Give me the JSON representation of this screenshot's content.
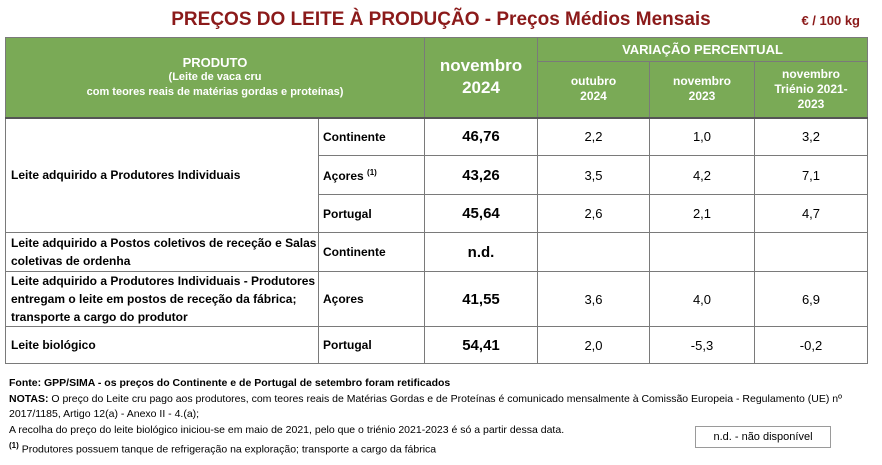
{
  "title": "PREÇOS DO LEITE À PRODUÇÃO - Preços Médios Mensais",
  "unit": "€ / 100 kg",
  "header": {
    "produto": "PRODUTO",
    "produto_sub1": "(Leite de vaca cru",
    "produto_sub2": "com teores reais de matérias gordas e proteínas)",
    "month_line1": "novembro",
    "month_line2": "2024",
    "variation": "VARIAÇÃO PERCENTUAL",
    "col1_line1": "outubro",
    "col1_line2": "2024",
    "col2_line1": "novembro",
    "col2_line2": "2023",
    "col3_line1": "novembro",
    "col3_line2": "Triénio 2021-",
    "col3_line3": "2023"
  },
  "rows": [
    {
      "product": "Leite adquirido a Produtores Individuais",
      "region": "Continente",
      "price": "46,76",
      "v1": "2,2",
      "v2": "1,0",
      "v3": "3,2"
    },
    {
      "region": "Açores",
      "sup": "(1)",
      "price": "43,26",
      "v1": "3,5",
      "v2": "4,2",
      "v3": "7,1"
    },
    {
      "region": "Portugal",
      "price": "45,64",
      "v1": "2,6",
      "v2": "2,1",
      "v3": "4,7"
    },
    {
      "product": "Leite adquirido a Postos coletivos de receção e Salas coletivas de ordenha",
      "region": "Continente",
      "price": "n.d.",
      "v1": "",
      "v2": "",
      "v3": ""
    },
    {
      "product": "Leite adquirido a Produtores Individuais - Produtores entregam o leite em postos de receção da fábrica; transporte a cargo do produtor",
      "region": "Açores",
      "price": "41,55",
      "v1": "3,6",
      "v2": "4,0",
      "v3": "6,9"
    },
    {
      "product": "Leite biológico",
      "region": "Portugal",
      "price": "54,41",
      "v1": "2,0",
      "v2": "-5,3",
      "v3": "-0,2"
    }
  ],
  "notes": {
    "source_label": "Fonte: GPP/SIMA",
    "source_rest": " - os preços do Continente e de Portugal de setembro foram retificados",
    "notes_label": "NOTAS:",
    "notes_text": " O preço do Leite cru pago aos produtores, com teores reais de Matérias Gordas e de Proteínas é comunicado mensalmente à Comissão Europeia - Regulamento (UE) nº 2017/1185, Artigo 12(a) - Anexo II - 4.(a);",
    "bio_text": "A recolha do preço do leite biológico iniciou-se em maio de 2021, pelo que o triénio 2021-2023 é só a partir dessa data.",
    "footnote_mark": "(1)",
    "footnote_text": " Produtores possuem tanque de refrigeração na exploração; transporte a cargo da fábrica",
    "nd_legend": "n.d. - não disponível"
  },
  "colors": {
    "header_green": "#7aaa56",
    "title_red": "#8b1a1a"
  }
}
